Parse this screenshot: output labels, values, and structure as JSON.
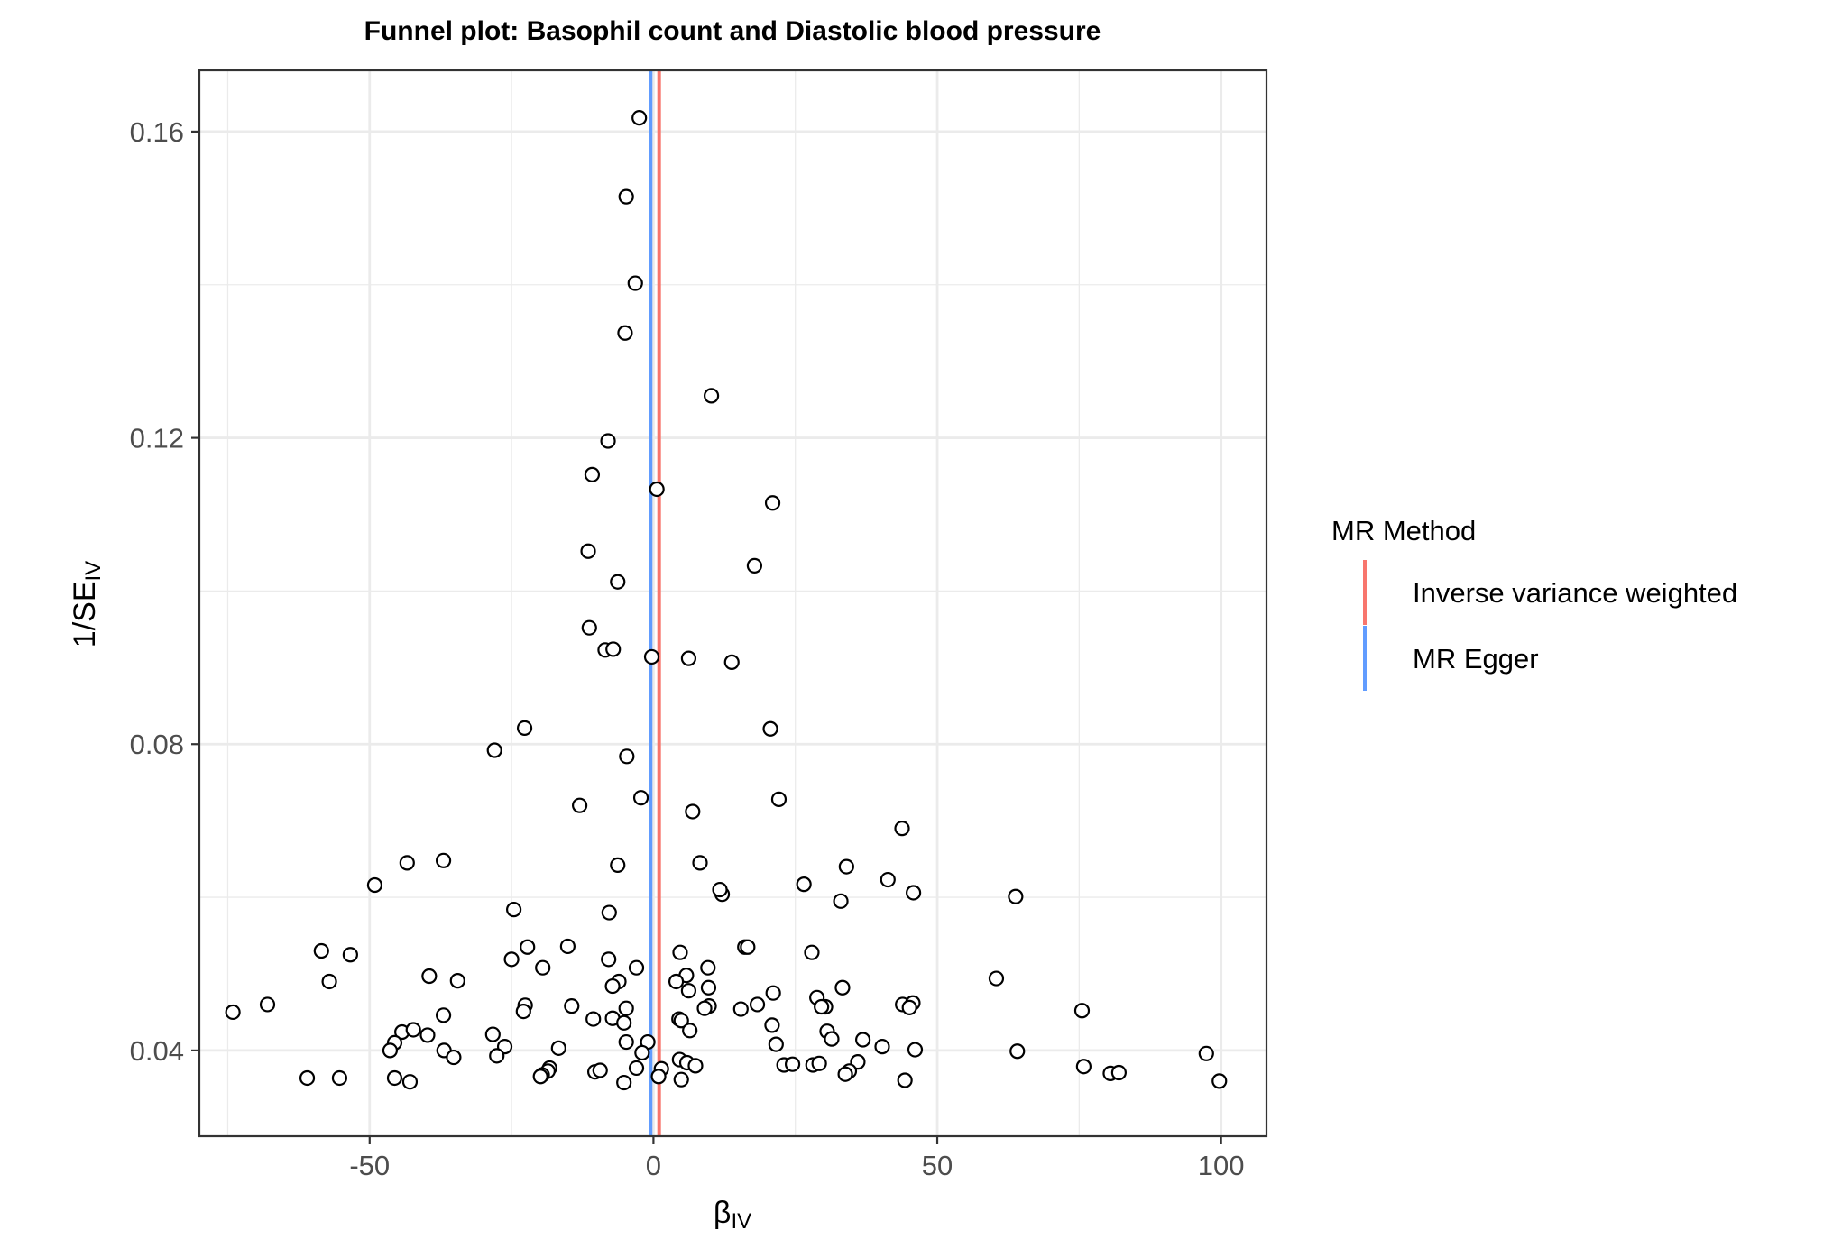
{
  "chart_data": {
    "type": "scatter",
    "title": "Funnel plot: Basophil count and Diastolic blood pressure",
    "xlabel": {
      "main": "β",
      "sub": "IV"
    },
    "ylabel": {
      "main": "1/SE",
      "sub": "IV"
    },
    "xlim": [
      -80,
      108
    ],
    "ylim": [
      0.0288,
      0.168
    ],
    "x_ticks": [
      -50,
      0,
      50,
      100
    ],
    "x_tick_labels": [
      "-50",
      "0",
      "50",
      "100"
    ],
    "y_ticks": [
      0.04,
      0.08,
      0.12,
      0.16
    ],
    "y_tick_labels": [
      "0.04",
      "0.08",
      "0.12",
      "0.16"
    ],
    "grid": true,
    "legend_position": "right",
    "legend": {
      "title": "MR Method",
      "entries": [
        {
          "label": "Inverse variance weighted",
          "color": "#F8766D"
        },
        {
          "label": "MR Egger",
          "color": "#619CFF"
        }
      ]
    },
    "vlines": [
      {
        "method": "Inverse variance weighted",
        "x": 1.0,
        "color": "#F8766D"
      },
      {
        "method": "MR Egger",
        "x": -0.5,
        "color": "#619CFF"
      }
    ],
    "points": [
      [
        -2.5,
        0.1618
      ],
      [
        -4.8,
        0.1515
      ],
      [
        -3.2,
        0.1402
      ],
      [
        -5.0,
        0.1337
      ],
      [
        10.2,
        0.1255
      ],
      [
        -8.0,
        0.1196
      ],
      [
        -10.8,
        0.1152
      ],
      [
        0.6,
        0.1133
      ],
      [
        21.0,
        0.1115
      ],
      [
        -11.5,
        0.1052
      ],
      [
        17.8,
        0.1033
      ],
      [
        -6.3,
        0.1012
      ],
      [
        -11.3,
        0.0952
      ],
      [
        -8.5,
        0.0923
      ],
      [
        -7.1,
        0.0924
      ],
      [
        -0.3,
        0.0914
      ],
      [
        6.2,
        0.0912
      ],
      [
        13.8,
        0.0907
      ],
      [
        -22.7,
        0.0821
      ],
      [
        20.6,
        0.082
      ],
      [
        -28.0,
        0.0792
      ],
      [
        -4.7,
        0.0784
      ],
      [
        -2.2,
        0.073
      ],
      [
        22.1,
        0.0728
      ],
      [
        -13.0,
        0.072
      ],
      [
        6.9,
        0.0712
      ],
      [
        43.8,
        0.069
      ],
      [
        -43.4,
        0.0645
      ],
      [
        -37.0,
        0.0648
      ],
      [
        -6.3,
        0.0642
      ],
      [
        8.2,
        0.0645
      ],
      [
        34.0,
        0.064
      ],
      [
        -49.1,
        0.0616
      ],
      [
        41.3,
        0.0623
      ],
      [
        26.5,
        0.0617
      ],
      [
        12.1,
        0.0604
      ],
      [
        11.7,
        0.061
      ],
      [
        45.8,
        0.0606
      ],
      [
        63.8,
        0.0601
      ],
      [
        33.0,
        0.0595
      ],
      [
        -24.6,
        0.0584
      ],
      [
        -7.8,
        0.058
      ],
      [
        -58.5,
        0.053
      ],
      [
        -53.4,
        0.0525
      ],
      [
        -22.2,
        0.0535
      ],
      [
        -15.1,
        0.0536
      ],
      [
        16.1,
        0.0535
      ],
      [
        16.6,
        0.0535
      ],
      [
        4.7,
        0.0528
      ],
      [
        27.9,
        0.0528
      ],
      [
        -25.0,
        0.0519
      ],
      [
        -7.9,
        0.0519
      ],
      [
        -19.5,
        0.0508
      ],
      [
        -3.0,
        0.0508
      ],
      [
        9.6,
        0.0508
      ],
      [
        5.8,
        0.0498
      ],
      [
        -39.5,
        0.0497
      ],
      [
        -34.5,
        0.0491
      ],
      [
        -57.1,
        0.049
      ],
      [
        4.0,
        0.049
      ],
      [
        -6.1,
        0.049
      ],
      [
        -7.2,
        0.0484
      ],
      [
        9.7,
        0.0482
      ],
      [
        6.2,
        0.0478
      ],
      [
        33.3,
        0.0482
      ],
      [
        60.4,
        0.0494
      ],
      [
        21.1,
        0.0475
      ],
      [
        28.8,
        0.0469
      ],
      [
        30.3,
        0.0457
      ],
      [
        29.6,
        0.0457
      ],
      [
        43.9,
        0.046
      ],
      [
        45.7,
        0.0462
      ],
      [
        45.1,
        0.0456
      ],
      [
        -74.1,
        0.045
      ],
      [
        -68.0,
        0.046
      ],
      [
        -14.4,
        0.0458
      ],
      [
        -22.6,
        0.0459
      ],
      [
        -22.9,
        0.0451
      ],
      [
        -4.8,
        0.0455
      ],
      [
        9.8,
        0.0458
      ],
      [
        9.0,
        0.0455
      ],
      [
        15.4,
        0.0454
      ],
      [
        18.3,
        0.046
      ],
      [
        75.5,
        0.0452
      ],
      [
        -37.0,
        0.0446
      ],
      [
        -10.6,
        0.0441
      ],
      [
        -7.2,
        0.0442
      ],
      [
        -5.2,
        0.0436
      ],
      [
        4.5,
        0.0441
      ],
      [
        4.9,
        0.0439
      ],
      [
        20.9,
        0.0433
      ],
      [
        6.4,
        0.0426
      ],
      [
        30.6,
        0.0425
      ],
      [
        -44.3,
        0.0424
      ],
      [
        -42.3,
        0.0427
      ],
      [
        -39.8,
        0.042
      ],
      [
        -28.3,
        0.0421
      ],
      [
        31.4,
        0.0415
      ],
      [
        36.9,
        0.0414
      ],
      [
        -45.6,
        0.041
      ],
      [
        -26.2,
        0.0405
      ],
      [
        -16.7,
        0.0403
      ],
      [
        -4.8,
        0.0411
      ],
      [
        -1.0,
        0.0411
      ],
      [
        21.6,
        0.0408
      ],
      [
        40.3,
        0.0405
      ],
      [
        -46.4,
        0.04
      ],
      [
        -36.9,
        0.04
      ],
      [
        -35.2,
        0.0391
      ],
      [
        -27.6,
        0.0393
      ],
      [
        -2.0,
        0.0397
      ],
      [
        46.1,
        0.0401
      ],
      [
        64.1,
        0.0399
      ],
      [
        97.4,
        0.0396
      ],
      [
        4.6,
        0.0388
      ],
      [
        5.9,
        0.0384
      ],
      [
        7.4,
        0.038
      ],
      [
        23.0,
        0.0381
      ],
      [
        24.5,
        0.0382
      ],
      [
        28.1,
        0.0381
      ],
      [
        29.2,
        0.0383
      ],
      [
        36.0,
        0.0385
      ],
      [
        -18.3,
        0.0377
      ],
      [
        -18.6,
        0.0373
      ],
      [
        -19.6,
        0.0368
      ],
      [
        -10.3,
        0.0372
      ],
      [
        -9.4,
        0.0374
      ],
      [
        -3.0,
        0.0377
      ],
      [
        1.4,
        0.0376
      ],
      [
        0.9,
        0.0366
      ],
      [
        34.5,
        0.0373
      ],
      [
        33.8,
        0.0369
      ],
      [
        75.8,
        0.0379
      ],
      [
        80.5,
        0.037
      ],
      [
        82.0,
        0.0371
      ],
      [
        -61.0,
        0.0364
      ],
      [
        -55.3,
        0.0364
      ],
      [
        -45.6,
        0.0364
      ],
      [
        -42.9,
        0.0359
      ],
      [
        -19.9,
        0.0366
      ],
      [
        -5.2,
        0.0358
      ],
      [
        4.9,
        0.0362
      ],
      [
        44.3,
        0.0361
      ],
      [
        99.7,
        0.036
      ]
    ]
  }
}
